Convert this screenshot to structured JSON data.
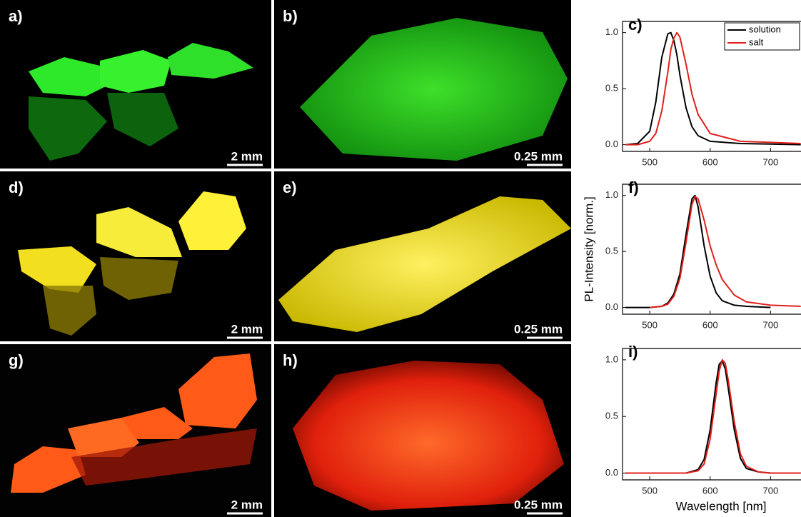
{
  "photos": [
    {
      "label": "a)",
      "scale": "2 mm"
    },
    {
      "label": "b)",
      "scale": "0.25 mm"
    },
    {
      "label": "d)",
      "scale": "2 mm"
    },
    {
      "label": "e)",
      "scale": "0.25 mm"
    },
    {
      "label": "g)",
      "scale": "2 mm"
    },
    {
      "label": "h)",
      "scale": "0.25 mm"
    }
  ],
  "chart_data": [
    {
      "type": "line",
      "label": "c)",
      "legend": "upper right",
      "x": [
        460,
        480,
        500,
        510,
        520,
        530,
        535,
        540,
        545,
        550,
        560,
        570,
        580,
        600,
        650,
        700,
        750
      ],
      "series": [
        {
          "name": "solution",
          "color": "#000000",
          "values": [
            0,
            0.01,
            0.12,
            0.38,
            0.78,
            0.99,
            1.0,
            0.93,
            0.8,
            0.62,
            0.33,
            0.16,
            0.08,
            0.03,
            0.01,
            0.005,
            0
          ]
        },
        {
          "name": "salt",
          "color": "#e0201b",
          "values": [
            0,
            0,
            0.03,
            0.1,
            0.3,
            0.65,
            0.85,
            0.95,
            1.0,
            0.96,
            0.72,
            0.45,
            0.27,
            0.1,
            0.03,
            0.02,
            0.01
          ]
        }
      ],
      "xlim": [
        455,
        748
      ],
      "xticks": [
        500,
        600,
        700
      ],
      "ylim": [
        -0.06,
        1.1
      ],
      "yticks": [
        {
          "value": 0,
          "label": "0.0"
        },
        0.5,
        {
          "value": 1,
          "label": "1.0"
        }
      ]
    },
    {
      "type": "line",
      "label": "f)",
      "ylabel": "PL-Intensity [norm.]",
      "x": [
        460,
        500,
        520,
        530,
        540,
        550,
        560,
        570,
        575,
        580,
        590,
        600,
        610,
        620,
        640,
        660,
        700,
        750
      ],
      "series": [
        {
          "name": "solution",
          "color": "#000000",
          "values": [
            0,
            0,
            0.01,
            0.04,
            0.12,
            0.3,
            0.65,
            0.97,
            1.0,
            0.9,
            0.55,
            0.28,
            0.13,
            0.06,
            0.02,
            0.01,
            0,
            null
          ]
        },
        {
          "name": "salt",
          "color": "#e0201b",
          "values": [
            null,
            0,
            0.01,
            0.03,
            0.1,
            0.26,
            0.58,
            0.92,
            0.99,
            0.97,
            0.78,
            0.55,
            0.38,
            0.25,
            0.11,
            0.05,
            0.02,
            0.01
          ]
        }
      ],
      "xlim": [
        455,
        748
      ],
      "xticks": [
        500,
        600,
        700
      ],
      "ylim": [
        -0.06,
        1.1
      ],
      "yticks": [
        {
          "value": 0,
          "label": "0.0"
        },
        0.5,
        {
          "value": 1,
          "label": "1.0"
        }
      ]
    },
    {
      "type": "line",
      "label": "i)",
      "xlabel": "Wavelength [nm]",
      "x": [
        460,
        560,
        580,
        590,
        600,
        610,
        615,
        620,
        625,
        630,
        640,
        650,
        660,
        680,
        700,
        750
      ],
      "series": [
        {
          "name": "solution",
          "color": "#000000",
          "values": [
            0,
            0,
            0.03,
            0.12,
            0.38,
            0.8,
            0.96,
            0.99,
            0.92,
            0.75,
            0.38,
            0.13,
            0.04,
            0.01,
            0,
            0
          ]
        },
        {
          "name": "salt",
          "color": "#e0201b",
          "values": [
            0,
            0,
            0.02,
            0.08,
            0.3,
            0.7,
            0.9,
            1.0,
            0.97,
            0.82,
            0.45,
            0.17,
            0.06,
            0.01,
            0,
            0
          ]
        }
      ],
      "xlim": [
        455,
        748
      ],
      "xticks": [
        500,
        600,
        700
      ],
      "ylim": [
        -0.06,
        1.1
      ],
      "yticks": [
        {
          "value": 0,
          "label": "0.0"
        },
        0.5,
        {
          "value": 1,
          "label": "1.0"
        }
      ]
    }
  ]
}
